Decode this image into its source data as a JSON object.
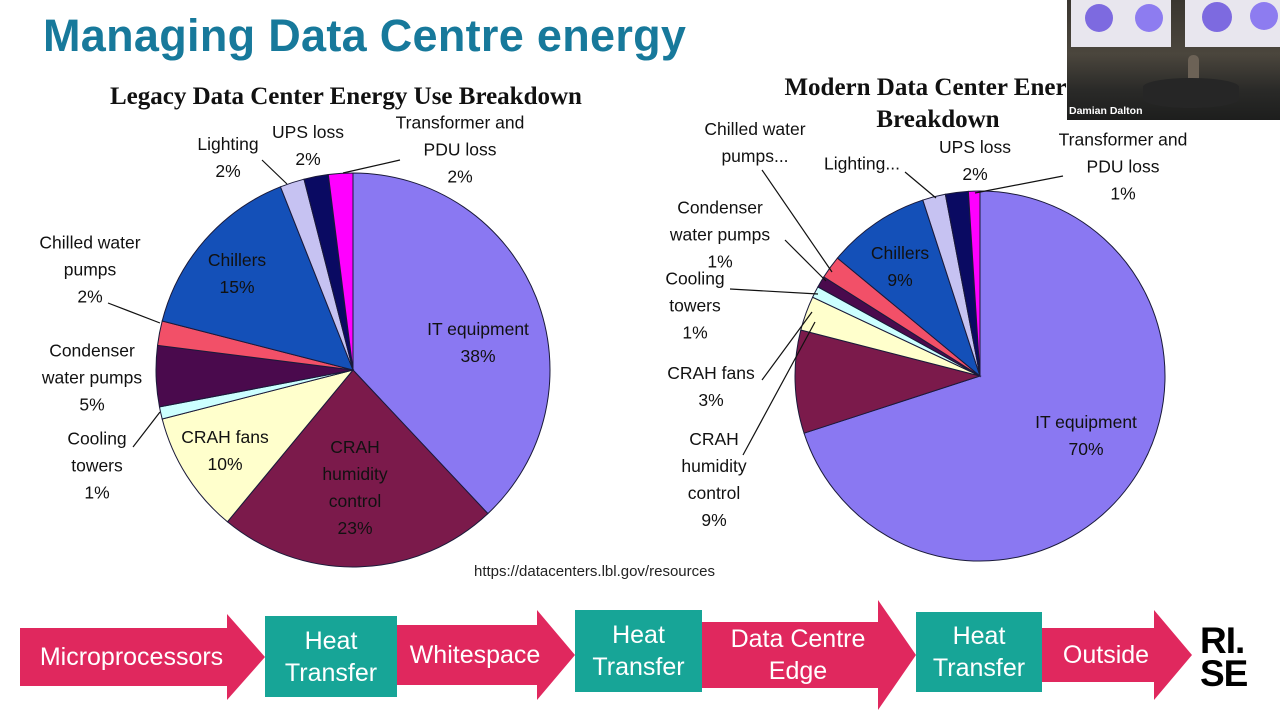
{
  "slide": {
    "title": "Managing Data Centre energy",
    "source": "https://datacenters.lbl.gov/resources",
    "logo": "RI. SE"
  },
  "webcam": {
    "name": "Damian Dalton"
  },
  "flow": [
    {
      "type": "arrow",
      "label": "Microprocessors"
    },
    {
      "type": "box",
      "label": "Heat Transfer"
    },
    {
      "type": "arrow",
      "label": "Whitespace"
    },
    {
      "type": "box",
      "label": "Heat Transfer"
    },
    {
      "type": "arrow",
      "label": "Data Centre Edge"
    },
    {
      "type": "box",
      "label": "Heat Transfer"
    },
    {
      "type": "arrow",
      "label": "Outside"
    }
  ],
  "colors": {
    "title": "#17799b",
    "arrow": "#e0285e",
    "box": "#17a597"
  },
  "chart_data": [
    {
      "type": "pie",
      "title": "Legacy Data Center Energy Use Breakdown",
      "slices": [
        {
          "label": "IT equipment",
          "value": 38,
          "value_text": "38%",
          "color": "#8a78f2"
        },
        {
          "label": "CRAH humidity control",
          "value": 23,
          "value_text": "23%",
          "color": "#7b1a4b"
        },
        {
          "label": "CRAH fans",
          "value": 10,
          "value_text": "10%",
          "color": "#ffffcc"
        },
        {
          "label": "Cooling towers",
          "value": 1,
          "value_text": "1%",
          "color": "#ccffff"
        },
        {
          "label": "Condenser water pumps",
          "value": 5,
          "value_text": "5%",
          "color": "#4a0a4d"
        },
        {
          "label": "Chilled water pumps",
          "value": 2,
          "value_text": "2%",
          "color": "#f25068"
        },
        {
          "label": "Chillers",
          "value": 15,
          "value_text": "15%",
          "color": "#1450b8"
        },
        {
          "label": "Lighting",
          "value": 2,
          "value_text": "2%",
          "color": "#c6c2f2"
        },
        {
          "label": "UPS loss",
          "value": 2,
          "value_text": "2%",
          "color": "#0a0a62"
        },
        {
          "label": "Transformer and PDU loss",
          "value": 2,
          "value_text": "2%",
          "color": "#ff00ff"
        }
      ]
    },
    {
      "type": "pie",
      "title": "Modern Data Center Energy Breakdown",
      "slices": [
        {
          "label": "IT equipment",
          "value": 70,
          "value_text": "70%",
          "color": "#8a78f2"
        },
        {
          "label": "CRAH humidity control",
          "value": 9,
          "value_text": "9%",
          "color": "#7b1a4b"
        },
        {
          "label": "CRAH fans",
          "value": 3,
          "value_text": "3%",
          "color": "#ffffcc"
        },
        {
          "label": "Cooling towers",
          "value": 1,
          "value_text": "1%",
          "color": "#ccffff"
        },
        {
          "label": "Condenser water pumps",
          "value": 1,
          "value_text": "1%",
          "color": "#4a0a4d"
        },
        {
          "label": "Chilled water pumps...",
          "value": 2,
          "value_text": "",
          "color": "#f25068"
        },
        {
          "label": "Chillers",
          "value": 9,
          "value_text": "9%",
          "color": "#1450b8"
        },
        {
          "label": "Lighting...",
          "value": 2,
          "value_text": "",
          "color": "#c6c2f2"
        },
        {
          "label": "UPS loss",
          "value": 2,
          "value_text": "2%",
          "color": "#0a0a62"
        },
        {
          "label": "Transformer and PDU loss",
          "value": 1,
          "value_text": "1%",
          "color": "#ff00ff"
        }
      ]
    }
  ]
}
